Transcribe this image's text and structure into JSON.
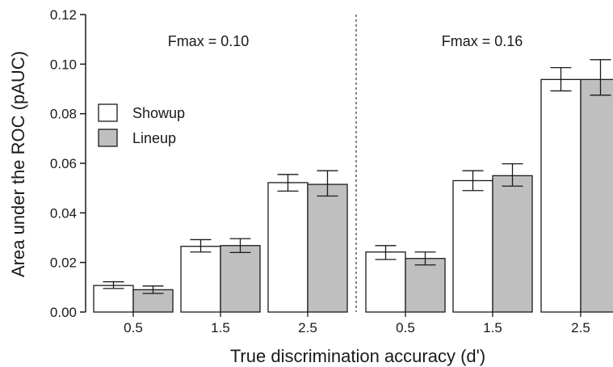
{
  "chart_data": {
    "type": "bar",
    "xlabel": "True discrimination accuracy (d')",
    "ylabel": "Area under the ROC (pAUC)",
    "ylim": [
      0,
      0.12
    ],
    "yticks": [
      "0.00",
      "0.02",
      "0.04",
      "0.06",
      "0.08",
      "0.10",
      "0.12"
    ],
    "grid": false,
    "legend_position": "top-left",
    "error_bars": true,
    "panels": [
      {
        "annotation": "Fmax = 0.10",
        "categories": [
          "0.5",
          "1.5",
          "2.5"
        ],
        "series": [
          {
            "name": "Showup",
            "color": "#ffffff",
            "values": [
              0.0107,
              0.0265,
              0.0522
            ],
            "error_low": [
              0.0095,
              0.0242,
              0.0488
            ],
            "error_high": [
              0.0122,
              0.0292,
              0.0555
            ]
          },
          {
            "name": "Lineup",
            "color": "#bfbfbf",
            "values": [
              0.009,
              0.0268,
              0.0515
            ],
            "error_low": [
              0.0075,
              0.024,
              0.0468
            ],
            "error_high": [
              0.0105,
              0.0296,
              0.057
            ]
          }
        ]
      },
      {
        "annotation": "Fmax = 0.16",
        "categories": [
          "0.5",
          "1.5",
          "2.5"
        ],
        "series": [
          {
            "name": "Showup",
            "color": "#ffffff",
            "values": [
              0.0242,
              0.053,
              0.0938
            ],
            "error_low": [
              0.0212,
              0.049,
              0.0892
            ],
            "error_high": [
              0.0268,
              0.057,
              0.0986
            ]
          },
          {
            "name": "Lineup",
            "color": "#bfbfbf",
            "values": [
              0.0216,
              0.055,
              0.0938
            ],
            "error_low": [
              0.019,
              0.0508,
              0.0875
            ],
            "error_high": [
              0.0242,
              0.0598,
              0.1018
            ]
          }
        ]
      }
    ]
  }
}
